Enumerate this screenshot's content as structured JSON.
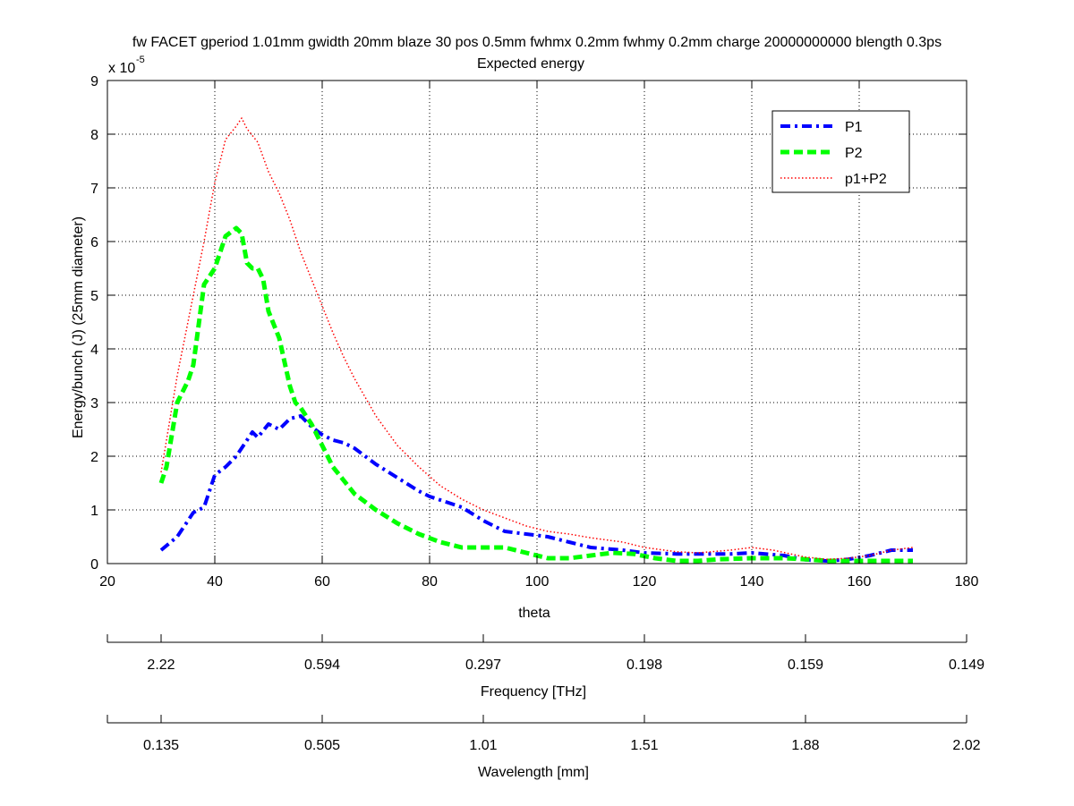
{
  "chart_data": {
    "type": "line",
    "title": "fw FACET gperiod 1.01mm gwidth 20mm blaze 30 pos 0.5mm fwhmx 0.2mm fwhmy 0.2mm charge 20000000000 blength 0.3ps",
    "subtitle": "Expected energy",
    "xlabel": "theta",
    "ylabel": "Energy/bunch (J) (25mm diameter)",
    "y_exponent_label": "x 10",
    "y_exponent": "-5",
    "xlim": [
      20,
      180
    ],
    "ylim": [
      0,
      9
    ],
    "x_ticks": [
      20,
      40,
      60,
      80,
      100,
      120,
      140,
      160,
      180
    ],
    "y_ticks": [
      0,
      1,
      2,
      3,
      4,
      5,
      6,
      7,
      8,
      9
    ],
    "grid": true,
    "legend_position": "top-right",
    "series": [
      {
        "name": "P1",
        "color": "#0000ff",
        "style": "dash-dot",
        "x": [
          30,
          33,
          36,
          38,
          40,
          42,
          44,
          46,
          47,
          48,
          50,
          52,
          54,
          56,
          58,
          60,
          62,
          64,
          66,
          68,
          70,
          74,
          78,
          80,
          86,
          90,
          94,
          98,
          102,
          106,
          110,
          116,
          120,
          126,
          130,
          136,
          140,
          146,
          150,
          154,
          158,
          162,
          166,
          170
        ],
        "y": [
          0.25,
          0.5,
          0.95,
          1.05,
          1.65,
          1.8,
          2.0,
          2.3,
          2.45,
          2.35,
          2.6,
          2.5,
          2.7,
          2.75,
          2.55,
          2.4,
          2.3,
          2.25,
          2.15,
          2.0,
          1.85,
          1.6,
          1.35,
          1.25,
          1.05,
          0.8,
          0.6,
          0.55,
          0.5,
          0.4,
          0.3,
          0.25,
          0.2,
          0.18,
          0.18,
          0.18,
          0.2,
          0.15,
          0.07,
          0.05,
          0.08,
          0.15,
          0.25,
          0.25
        ]
      },
      {
        "name": "P2",
        "color": "#00ff00",
        "style": "dashed",
        "x": [
          30,
          31,
          33,
          35,
          36,
          38,
          40,
          42,
          44,
          45,
          46,
          47,
          48,
          49,
          50,
          52,
          54,
          55,
          56,
          58,
          60,
          62,
          64,
          66,
          68,
          70,
          74,
          78,
          82,
          86,
          90,
          94,
          98,
          102,
          106,
          110,
          114,
          118,
          122,
          126,
          130,
          134,
          140,
          146,
          150,
          154,
          158,
          162,
          166,
          170
        ],
        "y": [
          1.5,
          1.8,
          3.0,
          3.4,
          3.7,
          5.2,
          5.5,
          6.1,
          6.25,
          6.15,
          5.6,
          5.5,
          5.5,
          5.3,
          4.7,
          4.2,
          3.3,
          3.0,
          2.9,
          2.6,
          2.2,
          1.8,
          1.55,
          1.3,
          1.15,
          1.0,
          0.75,
          0.55,
          0.4,
          0.3,
          0.3,
          0.3,
          0.2,
          0.1,
          0.1,
          0.15,
          0.2,
          0.18,
          0.1,
          0.05,
          0.05,
          0.08,
          0.1,
          0.1,
          0.08,
          0.05,
          0.05,
          0.05,
          0.05,
          0.05
        ]
      },
      {
        "name": "p1+P2",
        "color": "#ff0000",
        "style": "dotted",
        "x": [
          30,
          33,
          36,
          38,
          40,
          42,
          44,
          45,
          46,
          48,
          50,
          52,
          54,
          56,
          58,
          60,
          62,
          64,
          66,
          68,
          70,
          74,
          78,
          82,
          86,
          90,
          94,
          98,
          102,
          106,
          110,
          116,
          120,
          126,
          130,
          136,
          140,
          144,
          150,
          154,
          158,
          162,
          166,
          170
        ],
        "y": [
          1.7,
          3.5,
          5.0,
          6.0,
          7.1,
          7.9,
          8.15,
          8.3,
          8.1,
          7.85,
          7.3,
          6.9,
          6.4,
          5.8,
          5.3,
          4.8,
          4.3,
          3.85,
          3.45,
          3.1,
          2.75,
          2.2,
          1.8,
          1.45,
          1.2,
          1.0,
          0.85,
          0.7,
          0.6,
          0.55,
          0.48,
          0.4,
          0.3,
          0.22,
          0.2,
          0.25,
          0.3,
          0.25,
          0.12,
          0.08,
          0.1,
          0.15,
          0.25,
          0.3
        ]
      }
    ],
    "secondary_axes": [
      {
        "label": "Frequency [THz]",
        "ticks": [
          {
            "label": "2.22",
            "theta": 30
          },
          {
            "label": "0.594",
            "theta": 60
          },
          {
            "label": "0.297",
            "theta": 90
          },
          {
            "label": "0.198",
            "theta": 120
          },
          {
            "label": "0.159",
            "theta": 150
          },
          {
            "label": "0.149",
            "theta": 180
          }
        ]
      },
      {
        "label": "Wavelength [mm]",
        "ticks": [
          {
            "label": "0.135",
            "theta": 30
          },
          {
            "label": "0.505",
            "theta": 60
          },
          {
            "label": "1.01",
            "theta": 90
          },
          {
            "label": "1.51",
            "theta": 120
          },
          {
            "label": "1.88",
            "theta": 150
          },
          {
            "label": "2.02",
            "theta": 180
          }
        ]
      }
    ]
  }
}
